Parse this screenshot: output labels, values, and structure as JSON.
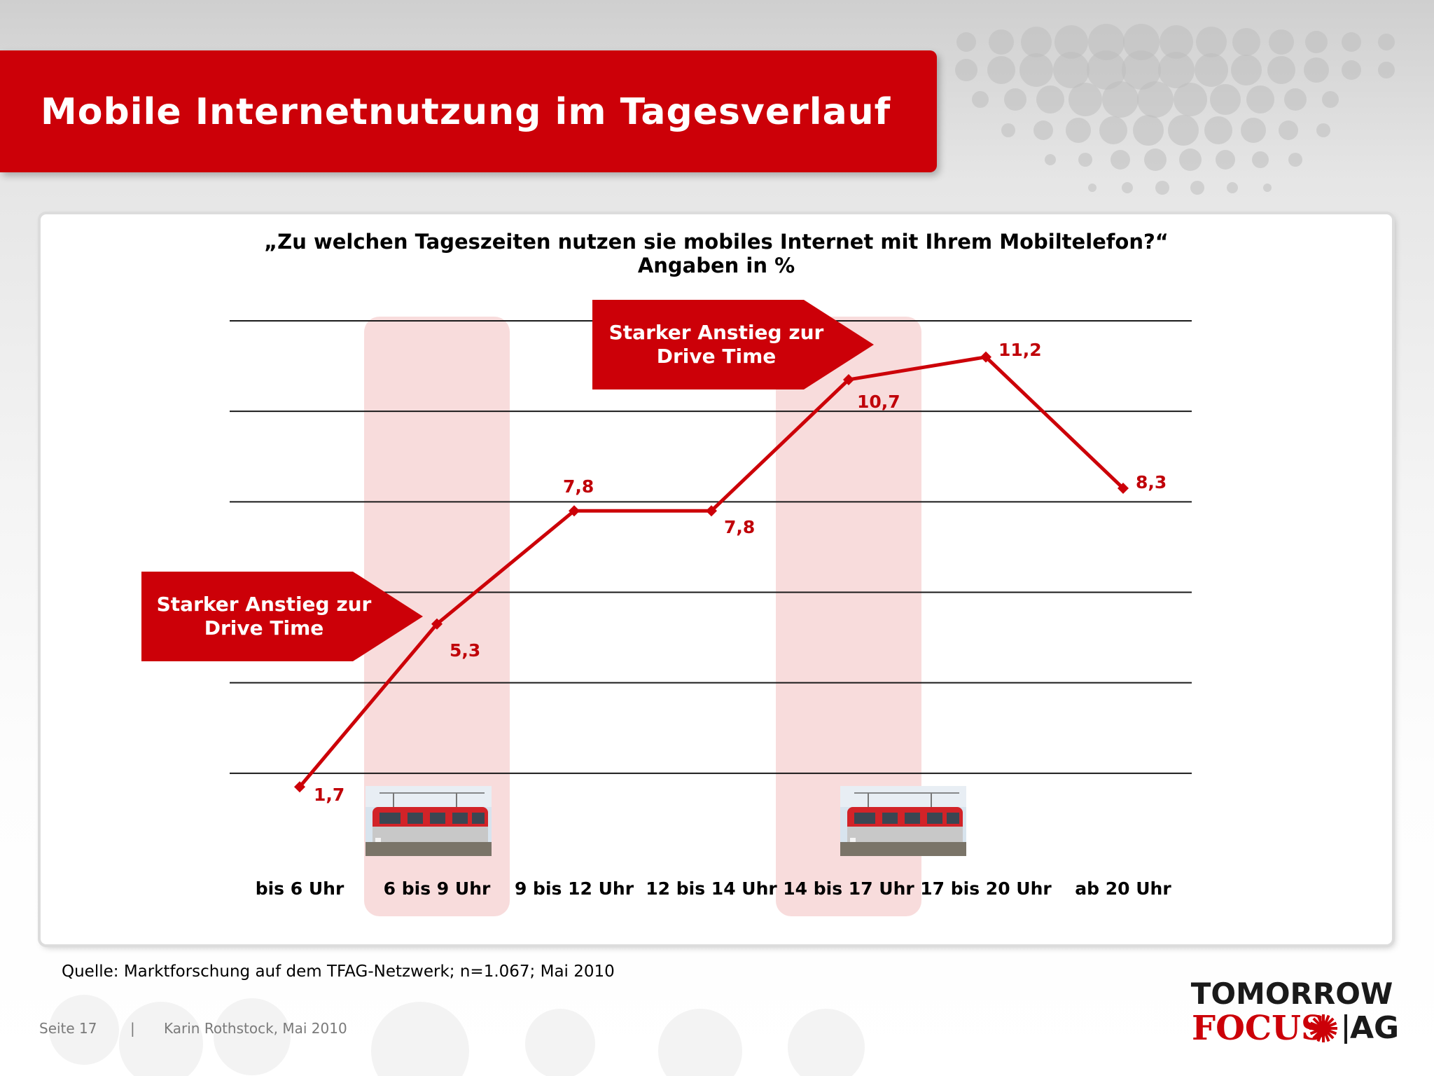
{
  "slide": {
    "title": "Mobile Internetnutzung im Tagesverlauf",
    "source": "Quelle: Marktforschung auf dem TFAG-Netzwerk; n=1.067; Mai 2010",
    "footer": {
      "page": "Seite 17",
      "separator": "|",
      "author": "Karin Rothstock, Mai 2010"
    },
    "logo": {
      "top": "TOMORROW",
      "focus": "FOCUS",
      "ag": "AG"
    },
    "colors": {
      "accent": "#cc0008",
      "highlight_band": "#f8dcdc"
    }
  },
  "callouts": [
    {
      "text_line1": "Starker Anstieg zur",
      "text_line2": "Drive Time"
    },
    {
      "text_line1": "Starker Anstieg zur",
      "text_line2": "Drive Time"
    }
  ],
  "chart_data": {
    "type": "line",
    "title": "„Zu welchen Tageszeiten nutzen sie mobiles Internet mit Ihrem Mobiltelefon?“",
    "subtitle": "Angaben in %",
    "categories": [
      "bis 6 Uhr",
      "6 bis 9 Uhr",
      "9 bis 12 Uhr",
      "12 bis 14 Uhr",
      "14 bis 17 Uhr",
      "17 bis 20 Uhr",
      "ab 20 Uhr"
    ],
    "series": [
      {
        "values": [
          1.7,
          5.3,
          7.8,
          7.8,
          10.7,
          11.2,
          8.3
        ],
        "labels": [
          "1,7",
          "5,3",
          "7,8",
          "7,8",
          "10,7",
          "11,2",
          "8,3"
        ]
      }
    ],
    "ylim": [
      0,
      12
    ],
    "gridlines": [
      2,
      4,
      6,
      8,
      10,
      12
    ],
    "highlighted_categories": [
      "6 bis 9 Uhr",
      "14 bis 17 Uhr"
    ],
    "grid": true,
    "legend": "none"
  }
}
